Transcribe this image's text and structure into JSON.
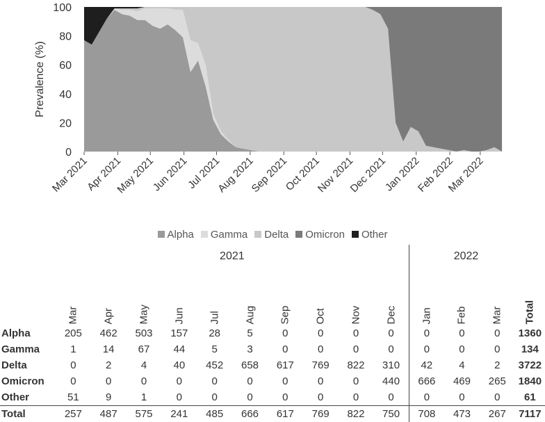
{
  "chart_data": {
    "type": "area",
    "stacked": true,
    "normalized": true,
    "ylabel": "Prevalence (%)",
    "ylim": [
      0,
      100
    ],
    "yticks": [
      "0",
      "20",
      "40",
      "60",
      "80",
      "100"
    ],
    "xtick_labels": [
      "Mar 2021",
      "Apr 2021",
      "May 2021",
      "Jun 2021",
      "Jul 2021",
      "Aug 2021",
      "Sep 2021",
      "Oct 2021",
      "Nov 2021",
      "Dec 2021",
      "Jan 2022",
      "Feb 2022",
      "Mar 2022"
    ],
    "x": [
      "2021-03-01",
      "2021-03-08",
      "2021-03-15",
      "2021-03-22",
      "2021-03-29",
      "2021-04-05",
      "2021-04-12",
      "2021-04-19",
      "2021-04-26",
      "2021-05-03",
      "2021-05-10",
      "2021-05-17",
      "2021-05-24",
      "2021-05-31",
      "2021-06-07",
      "2021-06-14",
      "2021-06-21",
      "2021-06-28",
      "2021-07-05",
      "2021-07-12",
      "2021-07-19",
      "2021-07-26",
      "2021-08-02",
      "2021-08-09",
      "2021-08-16",
      "2021-08-23",
      "2021-08-30",
      "2021-09-06",
      "2021-09-13",
      "2021-09-20",
      "2021-09-27",
      "2021-10-04",
      "2021-10-11",
      "2021-10-18",
      "2021-10-25",
      "2021-11-01",
      "2021-11-08",
      "2021-11-15",
      "2021-11-22",
      "2021-11-29",
      "2021-12-06",
      "2021-12-13",
      "2021-12-20",
      "2021-12-27",
      "2022-01-03",
      "2022-01-10",
      "2022-01-17",
      "2022-01-24",
      "2022-01-31",
      "2022-02-07",
      "2022-02-14",
      "2022-02-21",
      "2022-02-28",
      "2022-03-07",
      "2022-03-14",
      "2022-03-21"
    ],
    "series": [
      {
        "name": "Alpha",
        "color": "#9a9a9a",
        "values": [
          77,
          74,
          83,
          92,
          98,
          95,
          94,
          91,
          91,
          87,
          85,
          88,
          84,
          79,
          55,
          63,
          45,
          22,
          12,
          7,
          3,
          2,
          1,
          0,
          0,
          0,
          0,
          0,
          0,
          0,
          0,
          0,
          0,
          0,
          0,
          0,
          0,
          0,
          0,
          0,
          0,
          0,
          0,
          0,
          0,
          0,
          0,
          0,
          0,
          0,
          0,
          0,
          0,
          0,
          0,
          0
        ]
      },
      {
        "name": "Gamma",
        "color": "#dcdcdc",
        "values": [
          0,
          0,
          0,
          0,
          1,
          3,
          4,
          6,
          8,
          12,
          14,
          11,
          14,
          19,
          22,
          12,
          15,
          4,
          2,
          1,
          0,
          0,
          0,
          0,
          0,
          0,
          0,
          0,
          0,
          0,
          0,
          0,
          0,
          0,
          0,
          0,
          0,
          0,
          0,
          0,
          0,
          0,
          0,
          0,
          0,
          0,
          0,
          0,
          0,
          0,
          0,
          0,
          0,
          0,
          0,
          0
        ]
      },
      {
        "name": "Delta",
        "color": "#c8c8c8",
        "values": [
          0,
          0,
          0,
          0,
          0,
          1,
          1,
          2,
          1,
          1,
          1,
          1,
          2,
          2,
          23,
          25,
          40,
          74,
          86,
          92,
          97,
          98,
          99,
          100,
          100,
          100,
          100,
          100,
          100,
          100,
          100,
          100,
          100,
          100,
          100,
          100,
          100,
          100,
          98,
          95,
          85,
          20,
          7,
          17,
          14,
          4,
          3,
          2,
          1,
          0,
          1,
          0,
          0,
          1,
          3,
          0
        ]
      },
      {
        "name": "Omicron",
        "color": "#7a7a7a",
        "values": [
          0,
          0,
          0,
          0,
          0,
          0,
          0,
          0,
          0,
          0,
          0,
          0,
          0,
          0,
          0,
          0,
          0,
          0,
          0,
          0,
          0,
          0,
          0,
          0,
          0,
          0,
          0,
          0,
          0,
          0,
          0,
          0,
          0,
          0,
          0,
          0,
          0,
          0,
          2,
          5,
          15,
          80,
          93,
          83,
          86,
          96,
          97,
          98,
          99,
          100,
          99,
          100,
          100,
          99,
          97,
          100
        ]
      },
      {
        "name": "Other",
        "color": "#1e1e1e",
        "values": [
          23,
          26,
          17,
          8,
          1,
          1,
          1,
          1,
          0,
          0,
          0,
          0,
          0,
          0,
          0,
          0,
          0,
          0,
          0,
          0,
          0,
          0,
          0,
          0,
          0,
          0,
          0,
          0,
          0,
          0,
          0,
          0,
          0,
          0,
          0,
          0,
          0,
          0,
          0,
          0,
          0,
          0,
          0,
          0,
          0,
          0,
          0,
          0,
          0,
          0,
          0,
          0,
          0,
          0,
          0,
          0
        ]
      }
    ],
    "legend": "bottom"
  },
  "table": {
    "year_2021": "2021",
    "year_2022": "2022",
    "months": [
      "Mar",
      "Apr",
      "May",
      "Jun",
      "Jul",
      "Aug",
      "Sep",
      "Oct",
      "Nov",
      "Dec",
      "Jan",
      "Feb",
      "Mar"
    ],
    "total_header": "Total",
    "rows": [
      {
        "label": "Alpha",
        "values": [
          "205",
          "462",
          "503",
          "157",
          "28",
          "5",
          "0",
          "0",
          "0",
          "0",
          "0",
          "0",
          "0"
        ],
        "total": "1360"
      },
      {
        "label": "Gamma",
        "values": [
          "1",
          "14",
          "67",
          "44",
          "5",
          "3",
          "0",
          "0",
          "0",
          "0",
          "0",
          "0",
          "0"
        ],
        "total": "134"
      },
      {
        "label": "Delta",
        "values": [
          "0",
          "2",
          "4",
          "40",
          "452",
          "658",
          "617",
          "769",
          "822",
          "310",
          "42",
          "4",
          "2"
        ],
        "total": "3722"
      },
      {
        "label": "Omicron",
        "values": [
          "0",
          "0",
          "0",
          "0",
          "0",
          "0",
          "0",
          "0",
          "0",
          "440",
          "666",
          "469",
          "265"
        ],
        "total": "1840"
      },
      {
        "label": "Other",
        "values": [
          "51",
          "9",
          "1",
          "0",
          "0",
          "0",
          "0",
          "0",
          "0",
          "0",
          "0",
          "0",
          "0"
        ],
        "total": "61"
      },
      {
        "label": "Total",
        "values": [
          "257",
          "487",
          "575",
          "241",
          "485",
          "666",
          "617",
          "769",
          "822",
          "750",
          "708",
          "473",
          "267"
        ],
        "total": "7117"
      }
    ]
  }
}
